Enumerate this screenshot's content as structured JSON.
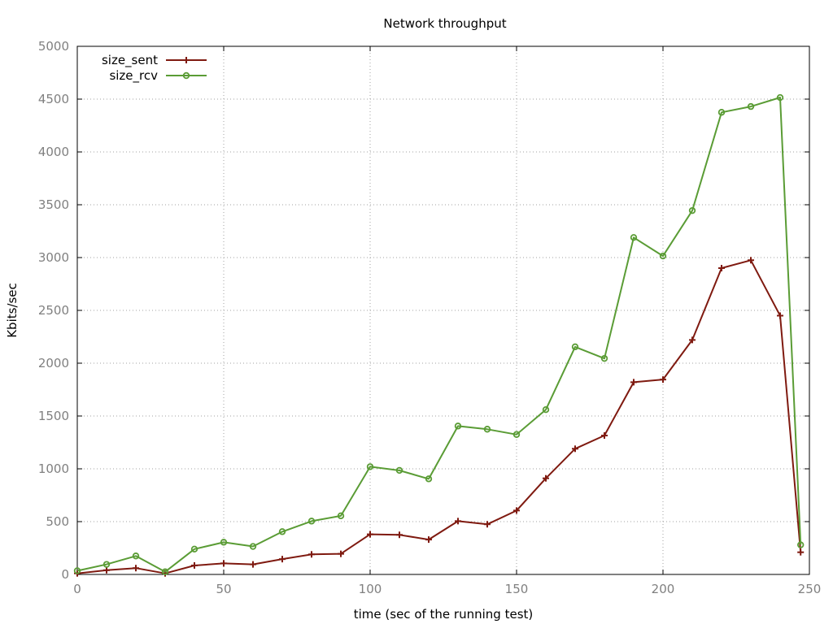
{
  "chart_data": {
    "type": "line",
    "title": "Network throughput",
    "xlabel": "time (sec of the running test)",
    "ylabel": "Kbits/sec",
    "xlim": [
      0,
      250
    ],
    "ylim": [
      0,
      5000
    ],
    "xticks": [
      0,
      50,
      100,
      150,
      200,
      250
    ],
    "yticks": [
      0,
      500,
      1000,
      1500,
      2000,
      2500,
      3000,
      3500,
      4000,
      4500,
      5000
    ],
    "grid": true,
    "legend_position": "top-left",
    "series": [
      {
        "name": "size_sent",
        "color": "#7f1a10",
        "marker": "plus",
        "points": [
          [
            0,
            10
          ],
          [
            10,
            40
          ],
          [
            20,
            60
          ],
          [
            30,
            10
          ],
          [
            40,
            85
          ],
          [
            50,
            105
          ],
          [
            60,
            95
          ],
          [
            70,
            145
          ],
          [
            80,
            190
          ],
          [
            90,
            195
          ],
          [
            100,
            380
          ],
          [
            110,
            375
          ],
          [
            120,
            330
          ],
          [
            130,
            505
          ],
          [
            140,
            475
          ],
          [
            150,
            605
          ],
          [
            160,
            910
          ],
          [
            170,
            1190
          ],
          [
            180,
            1315
          ],
          [
            190,
            1820
          ],
          [
            200,
            1845
          ],
          [
            210,
            2220
          ],
          [
            220,
            2900
          ],
          [
            230,
            2975
          ],
          [
            240,
            2450
          ],
          [
            247,
            210
          ]
        ]
      },
      {
        "name": "size_rcv",
        "color": "#5a9c35",
        "marker": "circle",
        "points": [
          [
            0,
            35
          ],
          [
            10,
            95
          ],
          [
            20,
            175
          ],
          [
            30,
            25
          ],
          [
            40,
            240
          ],
          [
            50,
            305
          ],
          [
            60,
            265
          ],
          [
            70,
            405
          ],
          [
            80,
            505
          ],
          [
            90,
            555
          ],
          [
            100,
            1020
          ],
          [
            110,
            985
          ],
          [
            120,
            905
          ],
          [
            130,
            1405
          ],
          [
            140,
            1375
          ],
          [
            150,
            1325
          ],
          [
            160,
            1560
          ],
          [
            170,
            2155
          ],
          [
            180,
            2045
          ],
          [
            190,
            3190
          ],
          [
            200,
            3015
          ],
          [
            210,
            3445
          ],
          [
            220,
            4375
          ],
          [
            230,
            4430
          ],
          [
            240,
            4515
          ],
          [
            247,
            280
          ]
        ]
      }
    ]
  }
}
